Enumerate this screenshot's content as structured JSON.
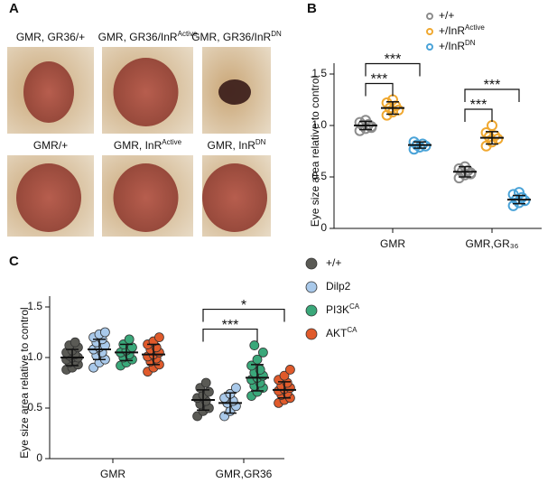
{
  "panels": [
    "A",
    "B",
    "C"
  ],
  "panel_a": {
    "images": [
      {
        "label": "GMR, GR36/+"
      },
      {
        "label": "GMR, GR36/InR",
        "sup": "Active"
      },
      {
        "label": "GMR, GR36/InR",
        "sup": "DN"
      },
      {
        "label": "GMR/+"
      },
      {
        "label": "GMR, InR",
        "sup": "Active"
      },
      {
        "label": "GMR, InR",
        "sup": "DN"
      }
    ]
  },
  "chart_data": [
    {
      "type": "dot",
      "ylabel": "Eye size area relative to control",
      "categories": [
        "GMR",
        "GMR,GR₃₆"
      ],
      "ylim": [
        0,
        1.5
      ],
      "yticks": [
        0,
        0.5,
        {
          "value": 1,
          "label": "1.0"
        },
        1.5
      ],
      "marker": "open",
      "legend": "upper right",
      "series": [
        {
          "name": "+/+",
          "color": "#8c8c8c",
          "values": [
            1.0,
            0.55
          ],
          "errors": [
            0.04,
            0.05
          ],
          "points": [
            [
              0.95,
              0.97,
              0.99,
              1.0,
              1.01,
              1.03,
              1.05,
              0.98
            ],
            [
              0.49,
              0.52,
              0.54,
              0.55,
              0.56,
              0.58,
              0.6,
              0.53
            ]
          ]
        },
        {
          "name": "+/InR",
          "sup": "Active",
          "color": "#f0a830",
          "values": [
            1.17,
            0.88
          ],
          "errors": [
            0.06,
            0.06
          ],
          "points": [
            [
              1.1,
              1.13,
              1.15,
              1.17,
              1.19,
              1.22,
              1.25
            ],
            [
              0.8,
              0.84,
              0.87,
              0.89,
              0.9,
              0.93,
              1.0
            ]
          ]
        },
        {
          "name": "+/InR",
          "sup": "DN",
          "color": "#4aa3d8",
          "values": [
            0.81,
            0.28
          ],
          "errors": [
            0.03,
            0.04
          ],
          "points": [
            [
              0.77,
              0.79,
              0.8,
              0.81,
              0.82,
              0.84
            ],
            [
              0.22,
              0.25,
              0.27,
              0.28,
              0.3,
              0.33,
              0.35
            ]
          ]
        }
      ],
      "annotations": [
        {
          "text": "***",
          "category": 0,
          "series": [
            0,
            1
          ]
        },
        {
          "text": "***",
          "category": 0,
          "series": [
            0,
            2
          ]
        },
        {
          "text": "***",
          "category": 1,
          "series": [
            0,
            1
          ]
        },
        {
          "text": "***",
          "category": 1,
          "series": [
            0,
            2
          ]
        }
      ]
    },
    {
      "type": "dot",
      "ylabel": "Eye size area relative to control",
      "categories": [
        "GMR",
        "GMR,GR36"
      ],
      "ylim": [
        0,
        1.5
      ],
      "yticks": [
        0,
        0.5,
        {
          "value": 1,
          "label": "1.0"
        },
        1.5
      ],
      "marker": "filled",
      "legend": "right",
      "series": [
        {
          "name": "+/+",
          "color": "#5a5a55",
          "values": [
            1.0,
            0.58
          ],
          "errors": [
            0.08,
            0.1
          ],
          "points": [
            [
              0.88,
              0.9,
              0.93,
              0.95,
              0.97,
              0.98,
              1.0,
              1.0,
              1.02,
              1.03,
              1.05,
              1.07,
              1.1,
              1.12,
              1.15
            ],
            [
              0.42,
              0.47,
              0.5,
              0.54,
              0.57,
              0.6,
              0.63,
              0.66,
              0.7,
              0.75
            ]
          ]
        },
        {
          "name": "Dilp2",
          "color": "#a9c9ea",
          "values": [
            1.08,
            0.55
          ],
          "errors": [
            0.1,
            0.1
          ],
          "points": [
            [
              0.9,
              0.95,
              0.98,
              1.02,
              1.05,
              1.08,
              1.1,
              1.12,
              1.15,
              1.18,
              1.2,
              1.23,
              1.25
            ],
            [
              0.42,
              0.47,
              0.52,
              0.55,
              0.57,
              0.6,
              0.64,
              0.7
            ]
          ]
        },
        {
          "name": "PI3K",
          "sup": "CA",
          "color": "#3aa87a",
          "values": [
            1.05,
            0.8
          ],
          "errors": [
            0.08,
            0.13
          ],
          "points": [
            [
              0.92,
              0.95,
              0.98,
              1.0,
              1.03,
              1.05,
              1.07,
              1.1,
              1.13,
              1.18
            ],
            [
              0.62,
              0.66,
              0.7,
              0.72,
              0.75,
              0.78,
              0.8,
              0.82,
              0.85,
              0.88,
              0.92,
              0.98,
              1.05,
              1.12
            ]
          ]
        },
        {
          "name": "AKT",
          "sup": "CA",
          "color": "#e05a2b",
          "values": [
            1.03,
            0.68
          ],
          "errors": [
            0.1,
            0.08
          ],
          "points": [
            [
              0.86,
              0.9,
              0.93,
              0.96,
              0.99,
              1.01,
              1.03,
              1.05,
              1.08,
              1.1,
              1.13,
              1.16,
              1.2
            ],
            [
              0.55,
              0.58,
              0.6,
              0.63,
              0.65,
              0.67,
              0.69,
              0.7,
              0.72,
              0.75,
              0.78,
              0.82,
              0.88
            ]
          ]
        }
      ],
      "annotations": [
        {
          "text": "***",
          "category": 1,
          "series": [
            0,
            2
          ]
        },
        {
          "text": "*",
          "category": 1,
          "series": [
            0,
            3
          ]
        }
      ]
    }
  ]
}
